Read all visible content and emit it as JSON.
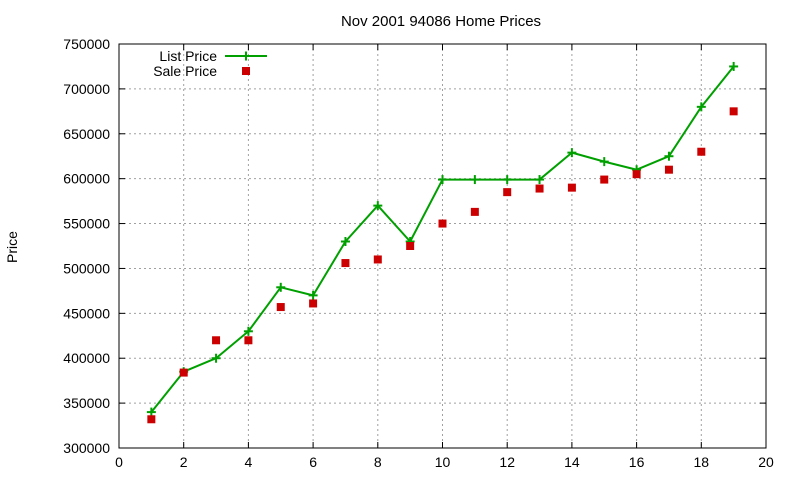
{
  "chart_data": {
    "type": "line",
    "title": "Nov 2001 94086 Home Prices",
    "xlabel": "",
    "ylabel": "Price",
    "xlim": [
      0,
      20
    ],
    "ylim": [
      300000,
      750000
    ],
    "x_ticks": [
      0,
      2,
      4,
      6,
      8,
      10,
      12,
      14,
      16,
      18,
      20
    ],
    "y_ticks": [
      300000,
      350000,
      400000,
      450000,
      500000,
      550000,
      600000,
      650000,
      700000,
      750000
    ],
    "grid": true,
    "legend_position": "top-left",
    "series": [
      {
        "name": "List Price",
        "style": "line-with-plus-markers",
        "color": "#00a000",
        "x": [
          1,
          2,
          3,
          4,
          5,
          6,
          7,
          8,
          9,
          10,
          11,
          12,
          13,
          14,
          15,
          16,
          17,
          18,
          19
        ],
        "values": [
          340000,
          385000,
          400000,
          430000,
          479000,
          470000,
          530000,
          570000,
          530000,
          599000,
          599000,
          599000,
          599000,
          629000,
          619000,
          610000,
          625000,
          680000,
          725000
        ]
      },
      {
        "name": "Sale Price",
        "style": "square-markers",
        "color": "#cc0000",
        "x": [
          1,
          2,
          3,
          4,
          5,
          6,
          7,
          8,
          9,
          10,
          11,
          12,
          13,
          14,
          15,
          16,
          17,
          18,
          19
        ],
        "values": [
          332000,
          384000,
          420000,
          420000,
          457000,
          461000,
          506000,
          510000,
          525000,
          550000,
          563000,
          585000,
          589000,
          590000,
          599000,
          605000,
          610000,
          630000,
          675000
        ]
      }
    ]
  }
}
